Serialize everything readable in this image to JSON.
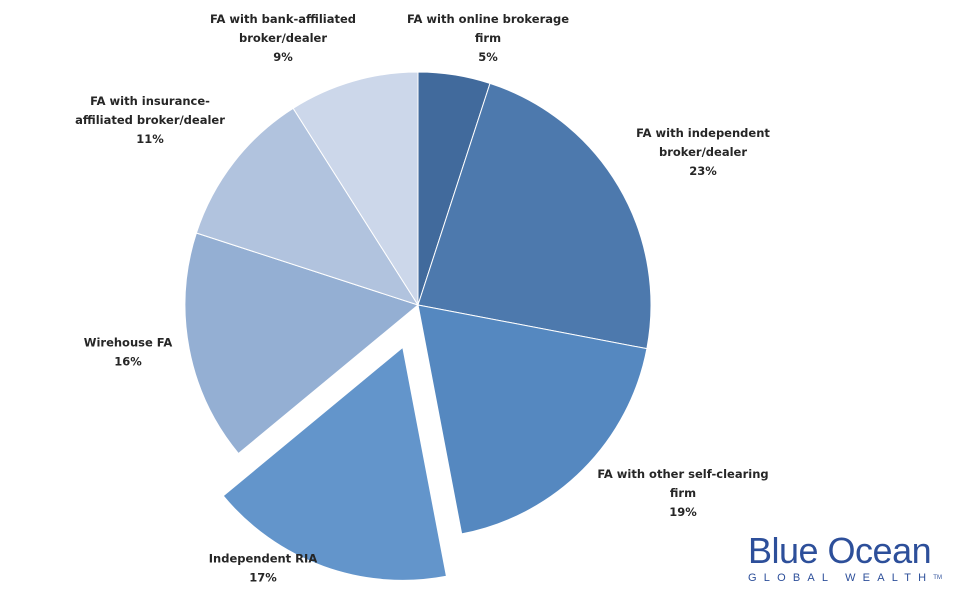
{
  "chart_data": {
    "type": "pie",
    "unit": "%",
    "slices": [
      {
        "label": [
          "FA with online brokerage",
          "firm"
        ],
        "value": 5,
        "value_text": "5%",
        "color": "#416a9c"
      },
      {
        "label": [
          "FA with independent",
          "broker/dealer"
        ],
        "value": 23,
        "value_text": "23%",
        "color": "#4d79ad"
      },
      {
        "label": [
          "FA with other self-clearing",
          "firm"
        ],
        "value": 19,
        "value_text": "19%",
        "color": "#5588c0"
      },
      {
        "label": [
          "Independent RIA"
        ],
        "value": 17,
        "value_text": "17%",
        "color": "#6395cb",
        "exploded": true
      },
      {
        "label": [
          "Wirehouse FA"
        ],
        "value": 16,
        "value_text": "16%",
        "color": "#94afd3"
      },
      {
        "label": [
          "FA with insurance-",
          "affiliated broker/dealer"
        ],
        "value": 11,
        "value_text": "11%",
        "color": "#b1c3de"
      },
      {
        "label": [
          "FA with bank-affiliated",
          "broker/dealer"
        ],
        "value": 9,
        "value_text": "9%",
        "color": "#ccd7ea"
      }
    ]
  },
  "branding": {
    "name": "Blue Ocean",
    "tagline": "GLOBAL WEALTH",
    "tm": "TM"
  }
}
